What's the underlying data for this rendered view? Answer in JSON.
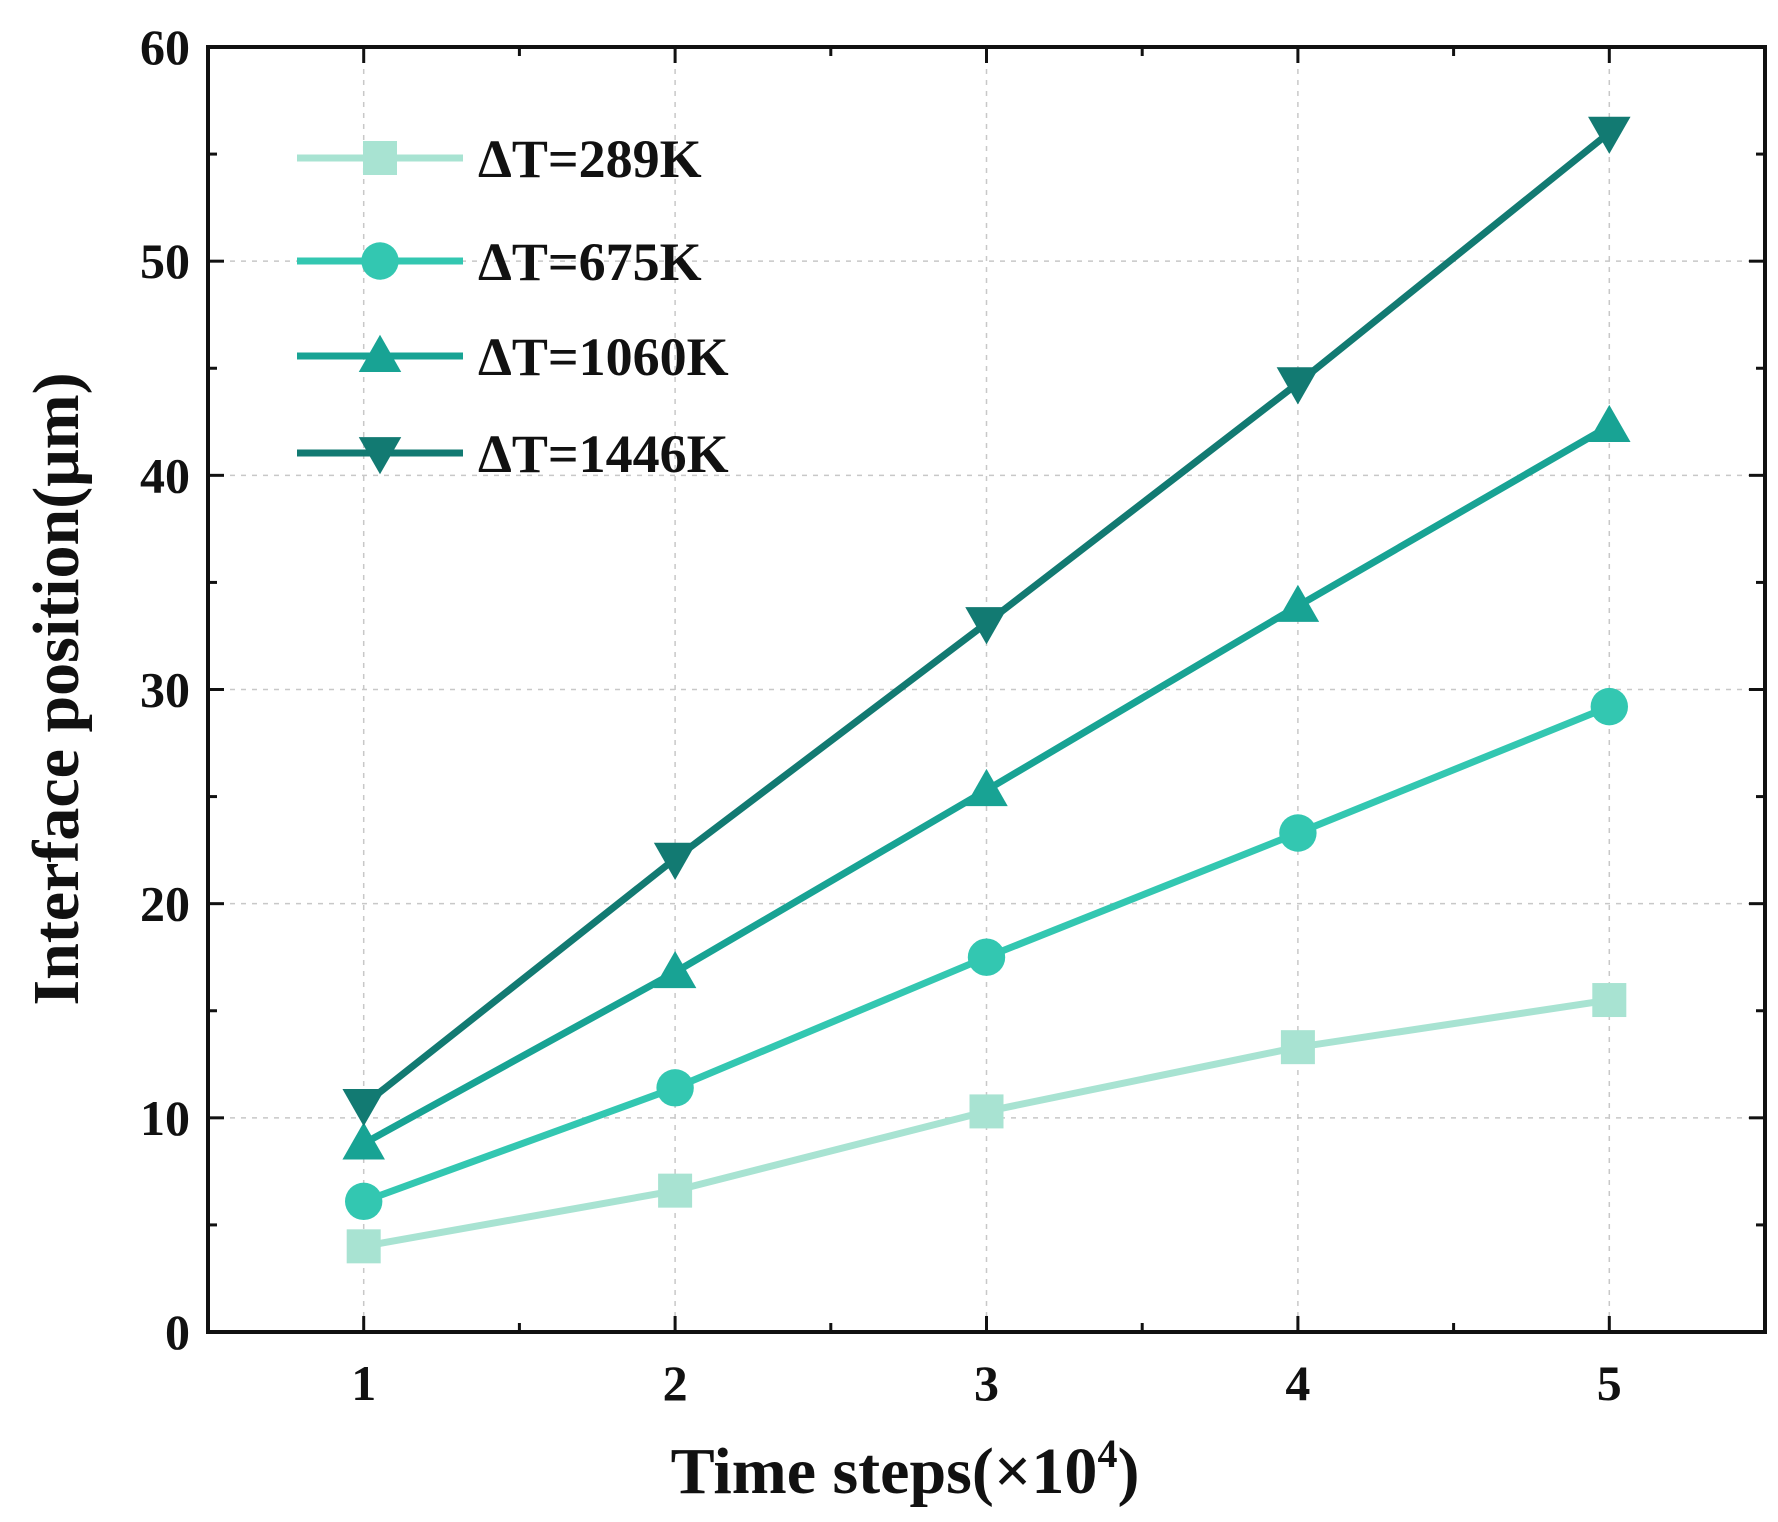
{
  "chart_data": {
    "type": "line",
    "title": "",
    "xlabel": "Time steps(×10",
    "xlabel_superscript": "4",
    "xlabel_suffix": ")",
    "ylabel": "Interface position(μm)",
    "x": [
      1,
      2,
      3,
      4,
      5
    ],
    "xticks": [
      "1",
      "2",
      "3",
      "4",
      "5"
    ],
    "yticks": [
      "0",
      "10",
      "20",
      "30",
      "40",
      "50",
      "60"
    ],
    "xlim": [
      0.5,
      5.5
    ],
    "ylim": [
      0,
      60
    ],
    "grid": true,
    "legend_position": "top-left",
    "series": [
      {
        "name": "ΔT=289K",
        "values": [
          4.0,
          6.6,
          10.3,
          13.3,
          15.5
        ],
        "color": "#a8e3d2",
        "marker": "square"
      },
      {
        "name": "ΔT=675K",
        "values": [
          6.1,
          11.4,
          17.5,
          23.3,
          29.2
        ],
        "color": "#33c7b1",
        "marker": "circle"
      },
      {
        "name": "ΔT=1060K",
        "values": [
          8.8,
          16.8,
          25.3,
          33.9,
          42.3
        ],
        "color": "#18a394",
        "marker": "triangle-up"
      },
      {
        "name": "ΔT=1446K",
        "values": [
          10.6,
          22.1,
          33.1,
          44.3,
          56.0
        ],
        "color": "#127a72",
        "marker": "triangle-down"
      }
    ]
  }
}
